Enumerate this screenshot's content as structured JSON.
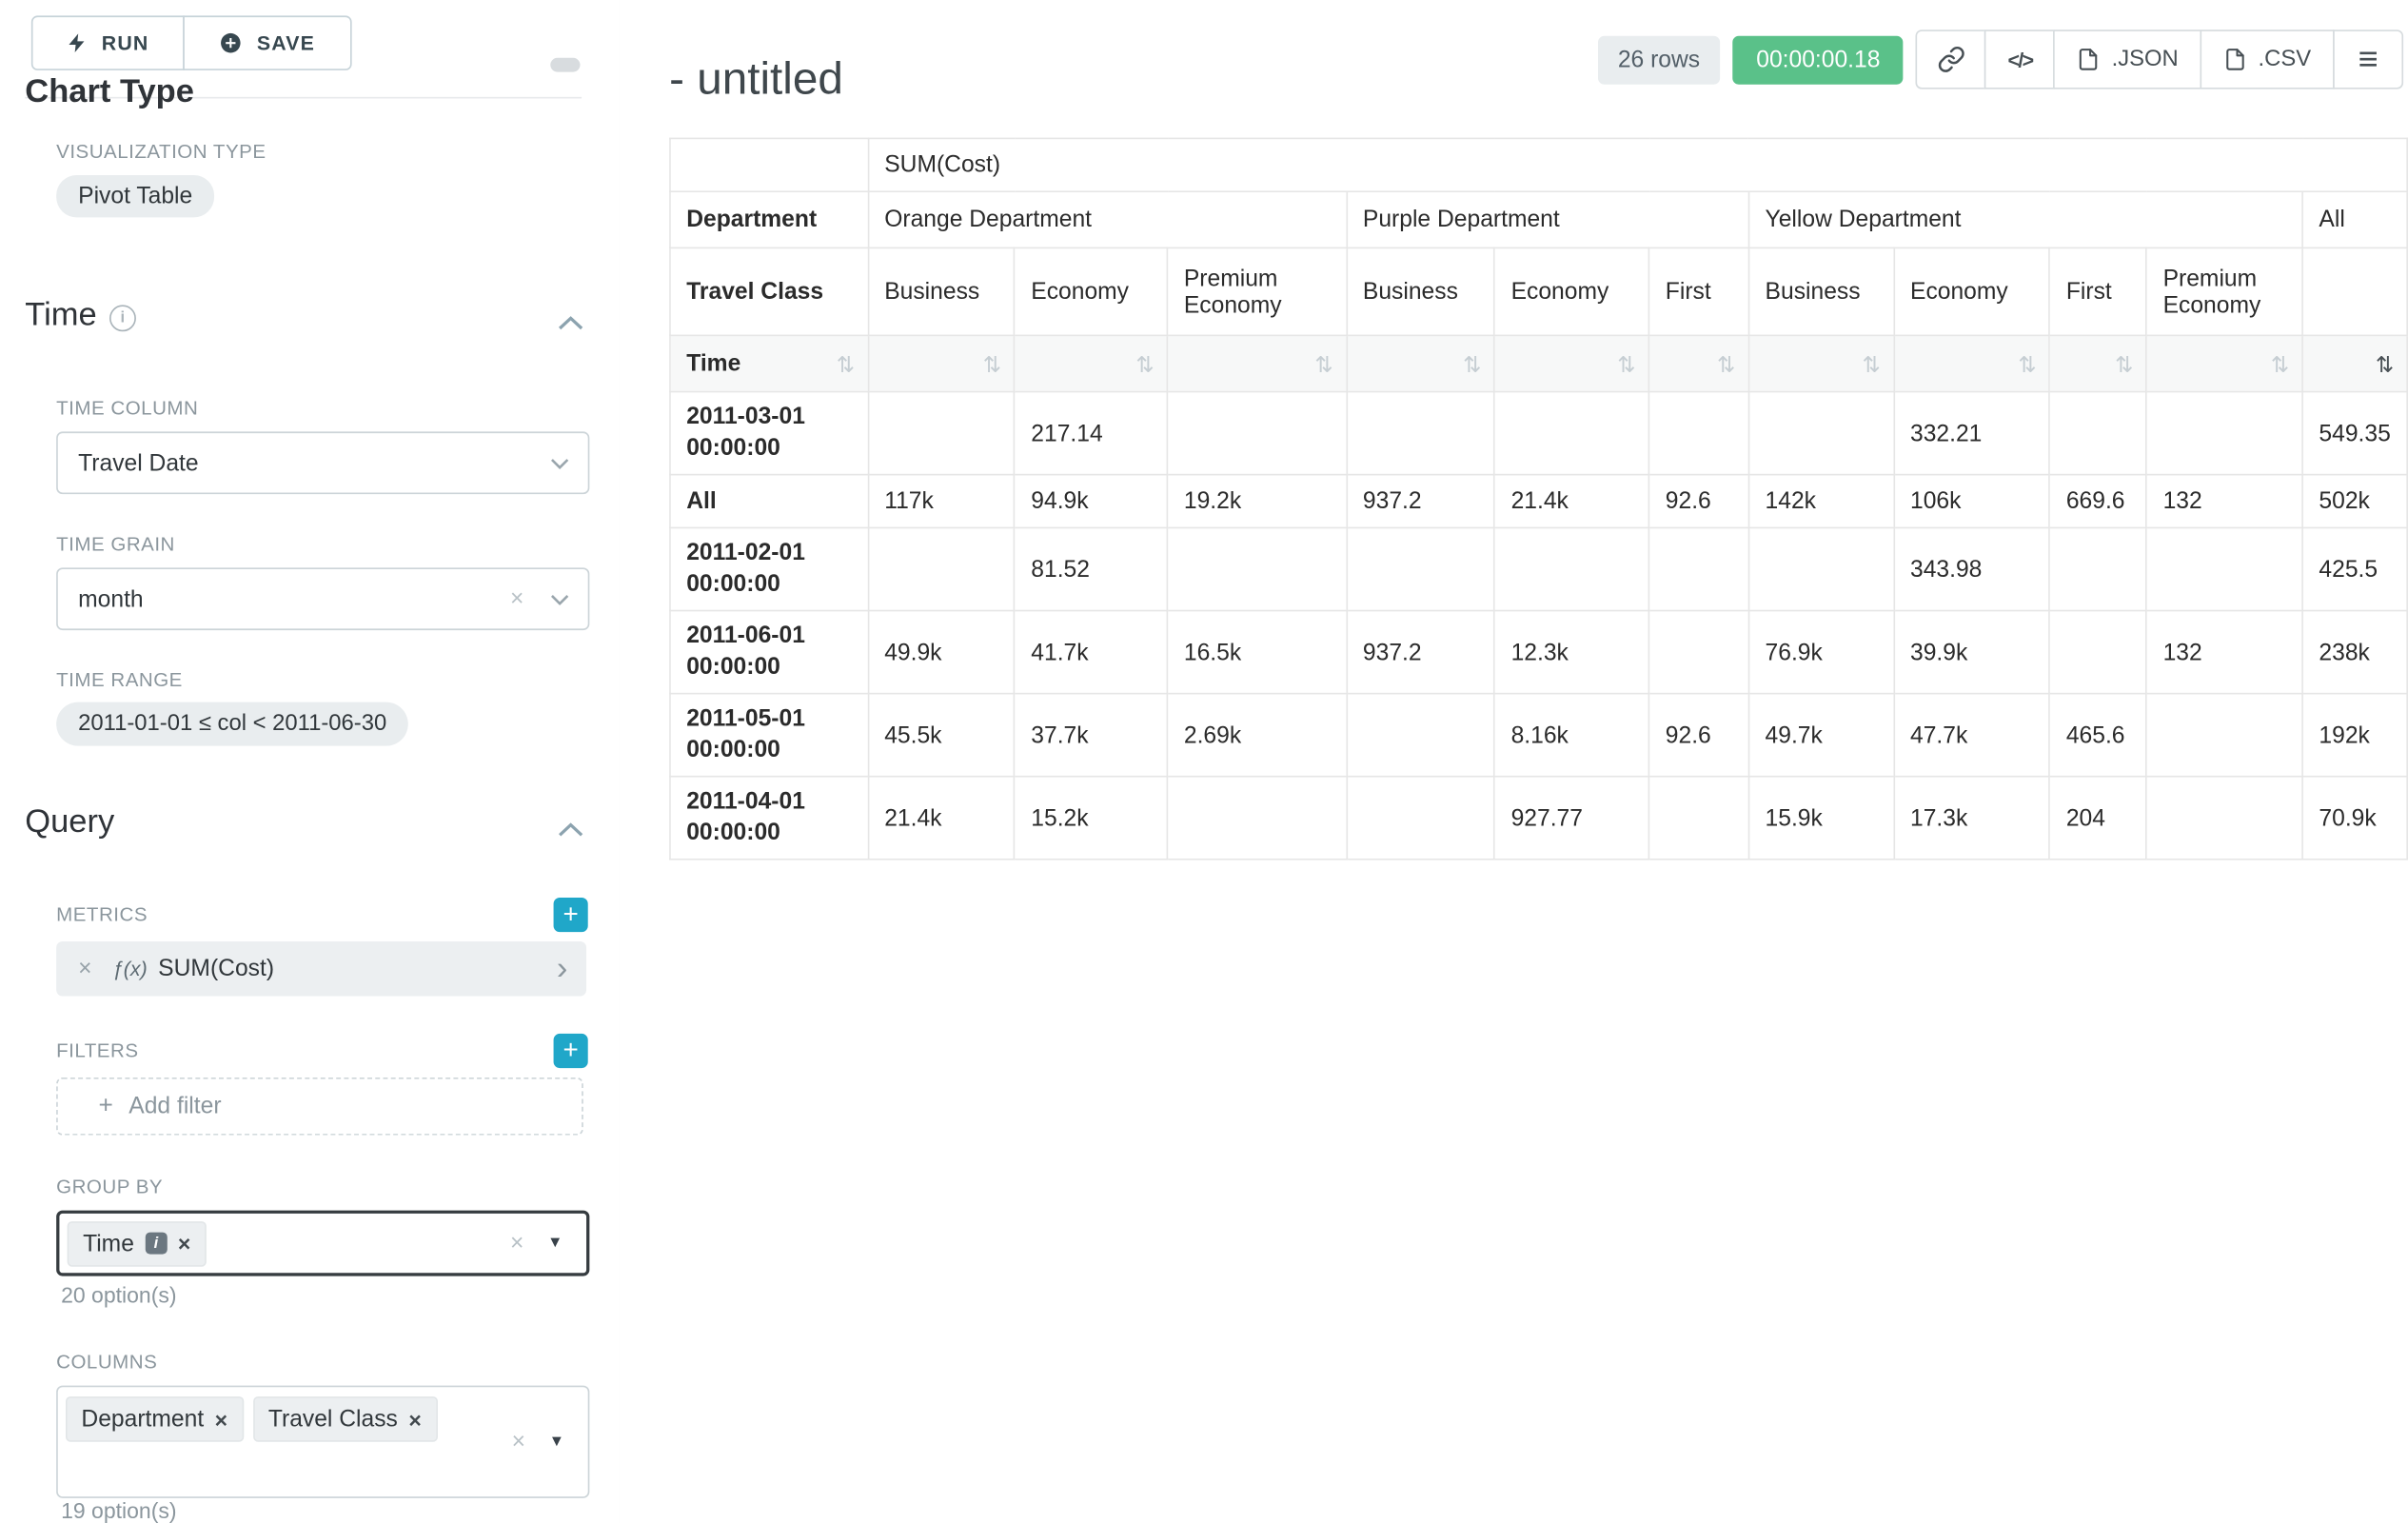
{
  "icons": {
    "close": "×",
    "plus": "+",
    "sort": "⇅",
    "code": "</>",
    "menu": "≡",
    "fx": "ƒ(x)",
    "chevron_right": "›",
    "caret_down": "▼",
    "info": "i"
  },
  "colors": {
    "accent_teal": "#20a7c9",
    "timer_green": "#5ac189"
  },
  "sidebar": {
    "run_label": "RUN",
    "save_label": "SAVE",
    "chart_type_heading": "Chart Type",
    "visualization_type_label": "VISUALIZATION TYPE",
    "visualization_type_value": "Pivot Table",
    "time_section": {
      "title": "Time",
      "time_column_label": "TIME COLUMN",
      "time_column_value": "Travel Date",
      "time_grain_label": "TIME GRAIN",
      "time_grain_value": "month",
      "time_range_label": "TIME RANGE",
      "time_range_value": "2011-01-01 ≤ col < 2011-06-30"
    },
    "query_section": {
      "title": "Query",
      "metrics_label": "METRICS",
      "metric_value": "SUM(Cost)",
      "filters_label": "FILTERS",
      "add_filter_label": "Add filter",
      "group_by_label": "GROUP BY",
      "group_by_values": [
        "Time"
      ],
      "group_by_options_count": "20 option(s)",
      "columns_label": "COLUMNS",
      "columns_values": [
        "Department",
        "Travel Class"
      ],
      "columns_options_count": "19 option(s)"
    }
  },
  "header": {
    "title": "- untitled",
    "rows_badge": "26 rows",
    "timer": "00:00:00.18",
    "json_label": ".JSON",
    "csv_label": ".CSV"
  },
  "pivot": {
    "metric_header": "SUM(Cost)",
    "department_row_label": "Department",
    "travel_class_row_label": "Travel Class",
    "time_row_label": "Time",
    "all_column_label": "All",
    "groups": [
      {
        "name": "Orange Department",
        "classes": [
          "Business",
          "Economy",
          "Premium Economy"
        ]
      },
      {
        "name": "Purple Department",
        "classes": [
          "Business",
          "Economy",
          "First"
        ]
      },
      {
        "name": "Yellow Department",
        "classes": [
          "Business",
          "Economy",
          "First",
          "Premium Economy"
        ]
      }
    ],
    "rows": [
      {
        "label": "2011-03-01 00:00:00",
        "values": [
          "",
          "217.14",
          "",
          "",
          "",
          "",
          "",
          "332.21",
          "",
          "",
          "549.35"
        ]
      },
      {
        "label": "All",
        "values": [
          "117k",
          "94.9k",
          "19.2k",
          "937.2",
          "21.4k",
          "92.6",
          "142k",
          "106k",
          "669.6",
          "132",
          "502k"
        ]
      },
      {
        "label": "2011-02-01 00:00:00",
        "values": [
          "",
          "81.52",
          "",
          "",
          "",
          "",
          "",
          "343.98",
          "",
          "",
          "425.5"
        ]
      },
      {
        "label": "2011-06-01 00:00:00",
        "values": [
          "49.9k",
          "41.7k",
          "16.5k",
          "937.2",
          "12.3k",
          "",
          "76.9k",
          "39.9k",
          "",
          "132",
          "238k"
        ]
      },
      {
        "label": "2011-05-01 00:00:00",
        "values": [
          "45.5k",
          "37.7k",
          "2.69k",
          "",
          "8.16k",
          "92.6",
          "49.7k",
          "47.7k",
          "465.6",
          "",
          "192k"
        ]
      },
      {
        "label": "2011-04-01 00:00:00",
        "values": [
          "21.4k",
          "15.2k",
          "",
          "",
          "927.77",
          "",
          "15.9k",
          "17.3k",
          "204",
          "",
          "70.9k"
        ]
      }
    ]
  }
}
